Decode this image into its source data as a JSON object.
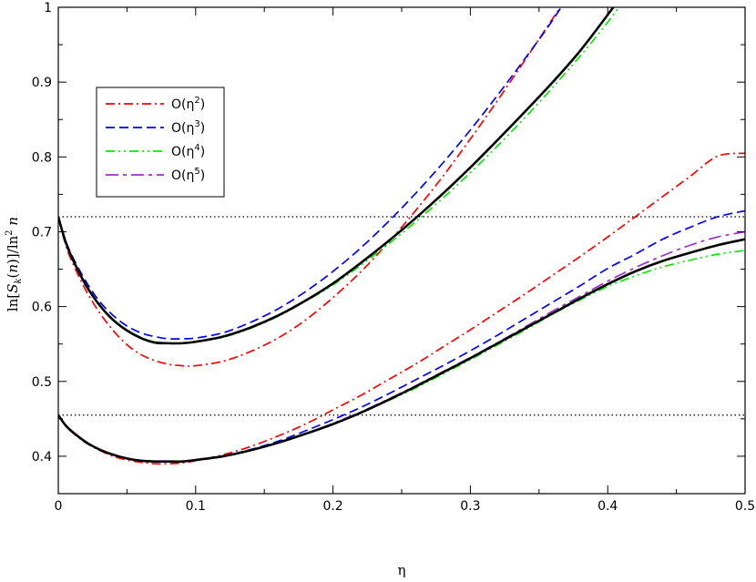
{
  "chart_data": {
    "type": "line",
    "xlabel": "η",
    "ylabel": "ln[S_k(n)]/ln²n",
    "xlim": [
      0,
      0.5
    ],
    "ylim": [
      0.35,
      1.0
    ],
    "xticks": [
      {
        "v": 0,
        "label": "0"
      },
      {
        "v": 0.1,
        "label": "0.1"
      },
      {
        "v": 0.2,
        "label": "0.2"
      },
      {
        "v": 0.3,
        "label": "0.3"
      },
      {
        "v": 0.4,
        "label": "0.4"
      },
      {
        "v": 0.5,
        "label": "0.5"
      }
    ],
    "yticks": [
      {
        "v": 0.4,
        "label": "0.4"
      },
      {
        "v": 0.5,
        "label": "0.5"
      },
      {
        "v": 0.6,
        "label": "0.6"
      },
      {
        "v": 0.7,
        "label": "0.7"
      },
      {
        "v": 0.8,
        "label": "0.8"
      },
      {
        "v": 0.9,
        "label": "0.9"
      },
      {
        "v": 1.0,
        "label": "1"
      }
    ],
    "hlines": [
      0.72,
      0.455
    ],
    "legend": {
      "placement": "top-left",
      "entries": [
        {
          "base": "O(η",
          "sup": "2",
          "close": ")",
          "color": "#ff0000",
          "dash": "10,4,2,4"
        },
        {
          "base": "O(η",
          "sup": "3",
          "close": ")",
          "color": "#0000ff",
          "dash": "10,5"
        },
        {
          "base": "O(η",
          "sup": "4",
          "close": ")",
          "color": "#00ee00",
          "dash": "10,4,2,4,2,4"
        },
        {
          "base": "O(η",
          "sup": "5",
          "close": ")",
          "color": "#9b30c8",
          "dash": "14,5,4,5"
        }
      ]
    },
    "series": [
      {
        "color": "#ff0000",
        "dash": "10,4,2,4",
        "x": [
          0,
          0.005,
          0.01,
          0.02,
          0.03,
          0.04,
          0.05,
          0.06,
          0.07,
          0.08,
          0.09,
          0.1,
          0.12,
          0.14,
          0.16,
          0.18,
          0.2,
          0.22,
          0.24,
          0.26,
          0.28,
          0.3,
          0.32,
          0.34,
          0.36,
          0.38
        ],
        "y": [
          0.72,
          0.685,
          0.66,
          0.622,
          0.592,
          0.568,
          0.549,
          0.536,
          0.528,
          0.523,
          0.521,
          0.521,
          0.527,
          0.54,
          0.558,
          0.582,
          0.612,
          0.646,
          0.685,
          0.728,
          0.774,
          0.824,
          0.876,
          0.93,
          0.985,
          1.04
        ]
      },
      {
        "color": "#0000ff",
        "dash": "10,5",
        "x": [
          0,
          0.005,
          0.01,
          0.02,
          0.03,
          0.04,
          0.05,
          0.06,
          0.07,
          0.08,
          0.09,
          0.1,
          0.12,
          0.14,
          0.16,
          0.18,
          0.2,
          0.22,
          0.24,
          0.26,
          0.28,
          0.3,
          0.32,
          0.34,
          0.36,
          0.38
        ],
        "y": [
          0.72,
          0.69,
          0.668,
          0.634,
          0.607,
          0.588,
          0.574,
          0.565,
          0.56,
          0.557,
          0.557,
          0.558,
          0.565,
          0.579,
          0.597,
          0.62,
          0.647,
          0.678,
          0.713,
          0.751,
          0.792,
          0.836,
          0.883,
          0.932,
          0.983,
          1.04
        ]
      },
      {
        "color": "#00ee00",
        "dash": "10,4,2,4,2,4",
        "x": [
          0,
          0.005,
          0.01,
          0.02,
          0.03,
          0.04,
          0.05,
          0.06,
          0.07,
          0.08,
          0.09,
          0.1,
          0.12,
          0.14,
          0.16,
          0.18,
          0.2,
          0.22,
          0.24,
          0.26,
          0.28,
          0.3,
          0.32,
          0.34,
          0.36,
          0.38,
          0.4,
          0.42
        ],
        "y": [
          0.72,
          0.689,
          0.665,
          0.63,
          0.603,
          0.583,
          0.569,
          0.559,
          0.553,
          0.551,
          0.551,
          0.553,
          0.559,
          0.571,
          0.587,
          0.607,
          0.629,
          0.655,
          0.683,
          0.713,
          0.745,
          0.779,
          0.815,
          0.853,
          0.893,
          0.935,
          0.98,
          1.03
        ]
      },
      {
        "color": "#9b30c8",
        "dash": "14,5,4,5",
        "x": [
          0,
          0.005,
          0.01,
          0.02,
          0.03,
          0.04,
          0.05,
          0.06,
          0.07,
          0.08,
          0.09,
          0.1,
          0.12,
          0.14,
          0.16,
          0.18,
          0.2,
          0.22,
          0.24,
          0.26,
          0.28,
          0.3,
          0.32,
          0.34,
          0.36,
          0.38,
          0.4,
          0.42
        ],
        "y": [
          0.72,
          0.688,
          0.665,
          0.629,
          0.602,
          0.582,
          0.568,
          0.558,
          0.552,
          0.551,
          0.551,
          0.553,
          0.56,
          0.572,
          0.588,
          0.608,
          0.631,
          0.658,
          0.687,
          0.718,
          0.751,
          0.786,
          0.823,
          0.861,
          0.9,
          0.942,
          0.99,
          1.04
        ]
      },
      {
        "color": "#000000",
        "width": 2.6,
        "x": [
          0,
          0.005,
          0.01,
          0.02,
          0.03,
          0.04,
          0.05,
          0.06,
          0.07,
          0.08,
          0.09,
          0.1,
          0.12,
          0.14,
          0.16,
          0.18,
          0.2,
          0.22,
          0.24,
          0.26,
          0.28,
          0.3,
          0.32,
          0.34,
          0.36,
          0.38,
          0.4,
          0.42
        ],
        "y": [
          0.72,
          0.688,
          0.665,
          0.629,
          0.602,
          0.582,
          0.568,
          0.558,
          0.552,
          0.551,
          0.551,
          0.553,
          0.56,
          0.572,
          0.588,
          0.608,
          0.631,
          0.658,
          0.687,
          0.718,
          0.751,
          0.786,
          0.823,
          0.861,
          0.9,
          0.942,
          0.99,
          1.04
        ]
      },
      {
        "color": "#ff0000",
        "dash": "10,4,2,4",
        "x": [
          0,
          0.005,
          0.01,
          0.02,
          0.03,
          0.04,
          0.05,
          0.06,
          0.07,
          0.08,
          0.09,
          0.1,
          0.12,
          0.14,
          0.16,
          0.18,
          0.2,
          0.22,
          0.24,
          0.26,
          0.28,
          0.3,
          0.32,
          0.34,
          0.36,
          0.38,
          0.4,
          0.42,
          0.44,
          0.46,
          0.48,
          0.5
        ],
        "y": [
          0.455,
          0.441,
          0.432,
          0.418,
          0.408,
          0.4,
          0.395,
          0.392,
          0.39,
          0.39,
          0.391,
          0.394,
          0.402,
          0.413,
          0.427,
          0.443,
          0.462,
          0.481,
          0.502,
          0.523,
          0.546,
          0.569,
          0.593,
          0.617,
          0.642,
          0.667,
          0.693,
          0.72,
          0.747,
          0.774,
          0.801,
          0.805
        ]
      },
      {
        "color": "#0000ff",
        "dash": "10,5",
        "x": [
          0,
          0.005,
          0.01,
          0.02,
          0.03,
          0.04,
          0.05,
          0.06,
          0.07,
          0.08,
          0.09,
          0.1,
          0.12,
          0.14,
          0.16,
          0.18,
          0.2,
          0.22,
          0.24,
          0.26,
          0.28,
          0.3,
          0.32,
          0.34,
          0.36,
          0.38,
          0.4,
          0.42,
          0.44,
          0.46,
          0.48,
          0.5
        ],
        "y": [
          0.455,
          0.442,
          0.433,
          0.419,
          0.409,
          0.402,
          0.397,
          0.394,
          0.393,
          0.393,
          0.393,
          0.395,
          0.4,
          0.409,
          0.42,
          0.434,
          0.449,
          0.465,
          0.483,
          0.502,
          0.521,
          0.541,
          0.562,
          0.584,
          0.606,
          0.628,
          0.651,
          0.67,
          0.69,
          0.706,
          0.72,
          0.728
        ]
      },
      {
        "color": "#00ee00",
        "dash": "10,4,2,4,2,4",
        "x": [
          0,
          0.005,
          0.01,
          0.02,
          0.03,
          0.04,
          0.05,
          0.06,
          0.07,
          0.08,
          0.09,
          0.1,
          0.12,
          0.14,
          0.16,
          0.18,
          0.2,
          0.22,
          0.24,
          0.26,
          0.28,
          0.3,
          0.32,
          0.34,
          0.36,
          0.38,
          0.4,
          0.42,
          0.44,
          0.46,
          0.48,
          0.5
        ],
        "y": [
          0.455,
          0.442,
          0.433,
          0.419,
          0.409,
          0.402,
          0.397,
          0.394,
          0.393,
          0.393,
          0.393,
          0.395,
          0.4,
          0.408,
          0.418,
          0.43,
          0.443,
          0.458,
          0.474,
          0.491,
          0.51,
          0.529,
          0.549,
          0.569,
          0.59,
          0.609,
          0.627,
          0.641,
          0.653,
          0.662,
          0.67,
          0.675
        ]
      },
      {
        "color": "#9b30c8",
        "dash": "14,5,4,5",
        "x": [
          0,
          0.005,
          0.01,
          0.02,
          0.03,
          0.04,
          0.05,
          0.06,
          0.07,
          0.08,
          0.09,
          0.1,
          0.12,
          0.14,
          0.16,
          0.18,
          0.2,
          0.22,
          0.24,
          0.26,
          0.28,
          0.3,
          0.32,
          0.34,
          0.36,
          0.38,
          0.4,
          0.42,
          0.44,
          0.46,
          0.48,
          0.5
        ],
        "y": [
          0.455,
          0.442,
          0.433,
          0.419,
          0.409,
          0.402,
          0.397,
          0.394,
          0.393,
          0.393,
          0.393,
          0.395,
          0.4,
          0.408,
          0.418,
          0.43,
          0.444,
          0.459,
          0.476,
          0.494,
          0.513,
          0.532,
          0.552,
          0.573,
          0.594,
          0.614,
          0.634,
          0.652,
          0.668,
          0.682,
          0.693,
          0.7
        ]
      },
      {
        "color": "#000000",
        "width": 2.6,
        "x": [
          0,
          0.005,
          0.01,
          0.02,
          0.03,
          0.04,
          0.05,
          0.06,
          0.07,
          0.08,
          0.09,
          0.1,
          0.12,
          0.14,
          0.16,
          0.18,
          0.2,
          0.22,
          0.24,
          0.26,
          0.28,
          0.3,
          0.32,
          0.34,
          0.36,
          0.38,
          0.4,
          0.42,
          0.44,
          0.46,
          0.48,
          0.5
        ],
        "y": [
          0.455,
          0.442,
          0.433,
          0.419,
          0.409,
          0.402,
          0.397,
          0.394,
          0.393,
          0.393,
          0.393,
          0.395,
          0.4,
          0.408,
          0.418,
          0.43,
          0.443,
          0.458,
          0.475,
          0.493,
          0.512,
          0.531,
          0.551,
          0.571,
          0.591,
          0.611,
          0.63,
          0.647,
          0.661,
          0.672,
          0.682,
          0.69
        ]
      }
    ]
  }
}
